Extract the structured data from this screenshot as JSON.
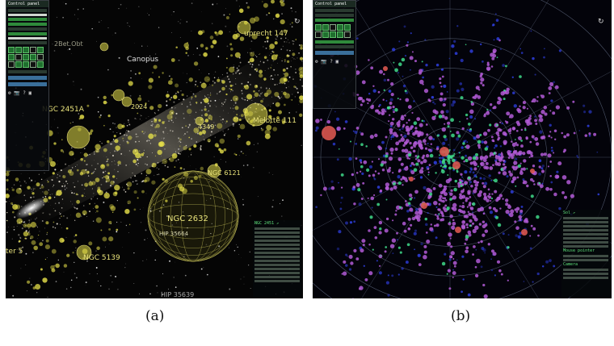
{
  "panel_a": {
    "control_panel_title": "Control panel",
    "labels": {
      "canopus": "Canopus",
      "ngc2451a": "NGC 2451A",
      "ngc2632": "NGC 2632",
      "hip35664": "HIP 35664",
      "ngc5139": "NGC 5139",
      "ngc6121": "NGC 6121",
      "melotte111": "Melotte 111",
      "ruprecht147": "uprecht 147",
      "ngc2024": "2024",
      "ngc4349": "4349",
      "zbet": "2Bet.Obt",
      "hip35639": "HIP 35639",
      "ter5": "ter 5"
    },
    "info_title": "NGC 2451 ↗"
  },
  "panel_b": {
    "control_panel_title": "Control panel",
    "info_title": "Sol ↗",
    "mouse_pointer": "Mouse pointer",
    "camera": "Camera"
  },
  "captions": {
    "a": "(a)",
    "b": "(b)"
  },
  "colors": {
    "cluster": "#e6e04a",
    "purple": "#b15bd6",
    "blue": "#2f3fe0",
    "green": "#3fd989"
  }
}
